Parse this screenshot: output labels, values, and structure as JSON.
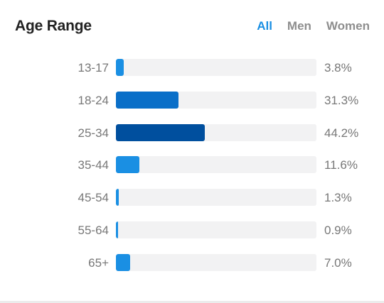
{
  "header": {
    "title": "Age Range",
    "tabs": [
      {
        "label": "All",
        "active": true
      },
      {
        "label": "Men",
        "active": false
      },
      {
        "label": "Women",
        "active": false
      }
    ]
  },
  "chart_data": {
    "type": "bar",
    "orientation": "horizontal",
    "categories": [
      "13-17",
      "18-24",
      "25-34",
      "35-44",
      "45-54",
      "55-64",
      "65+"
    ],
    "values": [
      3.8,
      31.3,
      44.2,
      11.6,
      1.3,
      0.9,
      7.0
    ],
    "value_labels": [
      "3.8%",
      "31.3%",
      "44.2%",
      "11.6%",
      "1.3%",
      "0.9%",
      "7.0%"
    ],
    "bar_colors": [
      "#1a8fe3",
      "#0a6fc8",
      "#004f9e",
      "#1a8fe3",
      "#1a8fe3",
      "#1a8fe3",
      "#1a8fe3"
    ],
    "track_color": "#f2f2f3",
    "xlim": [
      0,
      100
    ],
    "grid": false,
    "legend": "none"
  }
}
